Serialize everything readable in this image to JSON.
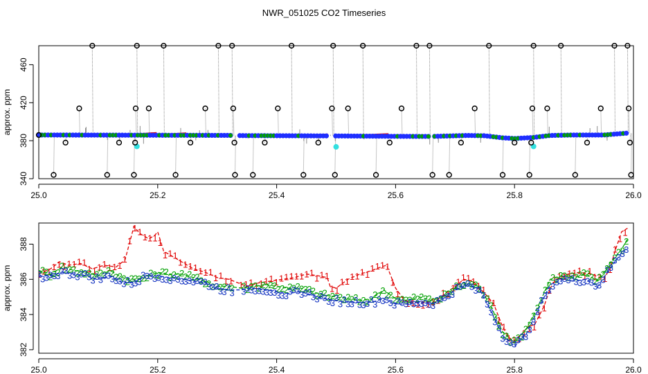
{
  "title": "NWR_051025  CO2 Timeseries",
  "colors": {
    "flag_black": "#000000",
    "blue_points": "#1f2fff",
    "cyan_points": "#33e0e0",
    "green_points": "#00a000",
    "red_series": "#e00000",
    "grey_lines": "#8c8c8c",
    "blue_series": "#1030c0"
  },
  "chart_data": [
    {
      "type": "scatter",
      "title": "NWR_051025  CO2 Timeseries",
      "ylabel": "approx. ppm",
      "xlabel": "",
      "xlim": [
        25.0,
        26.0
      ],
      "ylim": [
        340,
        480
      ],
      "xticks": [
        "25.0",
        "25.2",
        "25.4",
        "25.6",
        "25.8",
        "26.0"
      ],
      "yticks": [
        "340",
        "380",
        "420",
        "460"
      ],
      "grid": false,
      "baseline": [
        [
          25.0,
          386
        ],
        [
          25.32,
          385.6
        ],
        [
          25.33,
          385.4
        ],
        [
          25.5,
          385
        ],
        [
          25.6,
          384.6
        ],
        [
          25.66,
          384.5
        ],
        [
          25.68,
          384.8
        ],
        [
          25.72,
          385.5
        ],
        [
          25.75,
          385.2
        ],
        [
          25.78,
          383
        ],
        [
          25.8,
          382.3
        ],
        [
          25.83,
          383.3
        ],
        [
          25.86,
          385.5
        ],
        [
          25.9,
          386
        ],
        [
          25.95,
          386
        ],
        [
          25.99,
          388
        ]
      ],
      "gaps": [
        25.33,
        25.49,
        25.66
      ],
      "red_rise_segments": [
        [
          25.15,
          25.2,
          388
        ],
        [
          25.2,
          25.25,
          387.6
        ],
        [
          25.45,
          25.49,
          386.5
        ],
        [
          25.52,
          25.59,
          386.8
        ]
      ],
      "cyan_points": [
        [
          25.165,
          374
        ],
        [
          25.5,
          373.5
        ],
        [
          25.832,
          374
        ]
      ],
      "black_outliers": [
        [
          25.0,
          386
        ],
        [
          25.025,
          344
        ],
        [
          25.045,
          378
        ],
        [
          25.068,
          414
        ],
        [
          25.09,
          480
        ],
        [
          25.115,
          344
        ],
        [
          25.135,
          378
        ],
        [
          25.16,
          344
        ],
        [
          25.162,
          378
        ],
        [
          25.163,
          414
        ],
        [
          25.165,
          480
        ],
        [
          25.185,
          414
        ],
        [
          25.21,
          480
        ],
        [
          25.23,
          344
        ],
        [
          25.255,
          378
        ],
        [
          25.28,
          414
        ],
        [
          25.302,
          480
        ],
        [
          25.325,
          480
        ],
        [
          25.327,
          414
        ],
        [
          25.329,
          378
        ],
        [
          25.33,
          344
        ],
        [
          25.36,
          344
        ],
        [
          25.38,
          378
        ],
        [
          25.402,
          414
        ],
        [
          25.425,
          480
        ],
        [
          25.445,
          344
        ],
        [
          25.47,
          378
        ],
        [
          25.493,
          414
        ],
        [
          25.495,
          480
        ],
        [
          25.498,
          344
        ],
        [
          25.52,
          414
        ],
        [
          25.545,
          480
        ],
        [
          25.567,
          344
        ],
        [
          25.59,
          378
        ],
        [
          25.61,
          414
        ],
        [
          25.635,
          480
        ],
        [
          25.657,
          480
        ],
        [
          25.662,
          344
        ],
        [
          25.69,
          344
        ],
        [
          25.71,
          378
        ],
        [
          25.733,
          414
        ],
        [
          25.757,
          480
        ],
        [
          25.78,
          344
        ],
        [
          25.8,
          378
        ],
        [
          25.825,
          344
        ],
        [
          25.828,
          378
        ],
        [
          25.83,
          414
        ],
        [
          25.832,
          480
        ],
        [
          25.855,
          414
        ],
        [
          25.878,
          480
        ],
        [
          25.902,
          344
        ],
        [
          25.922,
          378
        ],
        [
          25.945,
          414
        ],
        [
          25.968,
          480
        ],
        [
          25.99,
          480
        ],
        [
          25.992,
          414
        ],
        [
          25.994,
          378
        ],
        [
          25.996,
          344
        ]
      ]
    },
    {
      "type": "line",
      "title": "",
      "ylabel": "approx. ppm",
      "xlabel": "",
      "xlim": [
        25.0,
        26.0
      ],
      "ylim": [
        381.8,
        389.2
      ],
      "xticks": [
        "25.0",
        "25.2",
        "25.4",
        "25.6",
        "25.8",
        "26.0"
      ],
      "yticks": [
        "382",
        "384",
        "386",
        "388"
      ],
      "grid": false,
      "series": [
        {
          "label": "1",
          "color": "#e00000",
          "points": [
            [
              25.0,
              386.3
            ],
            [
              25.02,
              386.6
            ],
            [
              25.035,
              387
            ],
            [
              25.05,
              386.8
            ],
            [
              25.07,
              386.9
            ],
            [
              25.09,
              386.6
            ],
            [
              25.11,
              386.8
            ],
            [
              25.13,
              386.7
            ],
            [
              25.145,
              387.1
            ],
            [
              25.16,
              389.0
            ],
            [
              25.17,
              388.6
            ],
            [
              25.185,
              388.3
            ],
            [
              25.195,
              388.5
            ],
            [
              25.2,
              388.7
            ],
            [
              25.21,
              387.6
            ],
            [
              25.225,
              387.3
            ],
            [
              25.24,
              387
            ],
            [
              25.26,
              386.6
            ],
            [
              25.28,
              386.4
            ],
            [
              25.3,
              386.1
            ],
            [
              25.32,
              386
            ],
            [
              25.335,
              385.8
            ],
            [
              25.35,
              385.6
            ],
            [
              25.37,
              385.8
            ],
            [
              25.39,
              385.9
            ],
            [
              25.41,
              386
            ],
            [
              25.43,
              386.1
            ],
            [
              25.45,
              386.3
            ],
            [
              25.47,
              386.2
            ],
            [
              25.485,
              386.1
            ],
            [
              25.49,
              385.6
            ],
            [
              25.5,
              385.5
            ],
            [
              25.52,
              386
            ],
            [
              25.54,
              386.3
            ],
            [
              25.56,
              386.5
            ],
            [
              25.575,
              386.7
            ],
            [
              25.585,
              386.8
            ],
            [
              25.6,
              385.5
            ],
            [
              25.615,
              384.8
            ],
            [
              25.63,
              384.7
            ],
            [
              25.65,
              384.7
            ],
            [
              25.665,
              384.7
            ],
            [
              25.68,
              385.1
            ],
            [
              25.7,
              385.6
            ],
            [
              25.715,
              386
            ],
            [
              25.73,
              385.9
            ],
            [
              25.75,
              385.2
            ],
            [
              25.765,
              384.6
            ],
            [
              25.78,
              383.3
            ],
            [
              25.79,
              382.7
            ],
            [
              25.8,
              382.5
            ],
            [
              25.81,
              382.8
            ],
            [
              25.82,
              383.2
            ],
            [
              25.835,
              383.5
            ],
            [
              25.85,
              384.5
            ],
            [
              25.86,
              385.5
            ],
            [
              25.87,
              386
            ],
            [
              25.89,
              386.3
            ],
            [
              25.91,
              386.4
            ],
            [
              25.93,
              386.3
            ],
            [
              25.95,
              386
            ],
            [
              25.96,
              386.6
            ],
            [
              25.97,
              387.7
            ],
            [
              25.98,
              388.7
            ],
            [
              25.99,
              388.9
            ]
          ]
        },
        {
          "label": "2",
          "color": "#00a000",
          "points": [
            [
              25.0,
              386.5
            ],
            [
              25.02,
              386.3
            ],
            [
              25.04,
              386.7
            ],
            [
              25.06,
              386.5
            ],
            [
              25.08,
              386.4
            ],
            [
              25.1,
              386.2
            ],
            [
              25.12,
              386.5
            ],
            [
              25.14,
              386.1
            ],
            [
              25.16,
              386
            ],
            [
              25.18,
              386.1
            ],
            [
              25.2,
              386.4
            ],
            [
              25.22,
              386.3
            ],
            [
              25.24,
              386.3
            ],
            [
              25.26,
              386.1
            ],
            [
              25.28,
              385.9
            ],
            [
              25.3,
              385.6
            ],
            [
              25.32,
              385.6
            ],
            [
              25.34,
              385.5
            ],
            [
              25.36,
              385.6
            ],
            [
              25.38,
              385.7
            ],
            [
              25.4,
              385.6
            ],
            [
              25.42,
              385.5
            ],
            [
              25.44,
              385.5
            ],
            [
              25.46,
              385.3
            ],
            [
              25.48,
              385.1
            ],
            [
              25.5,
              385
            ],
            [
              25.52,
              384.9
            ],
            [
              25.54,
              384.8
            ],
            [
              25.56,
              384.9
            ],
            [
              25.58,
              385.4
            ],
            [
              25.6,
              384.9
            ],
            [
              25.62,
              384.8
            ],
            [
              25.64,
              385
            ],
            [
              25.66,
              384.8
            ],
            [
              25.68,
              385
            ],
            [
              25.7,
              385.5
            ],
            [
              25.72,
              385.8
            ],
            [
              25.74,
              385.6
            ],
            [
              25.76,
              384.5
            ],
            [
              25.78,
              383
            ],
            [
              25.8,
              382.4
            ],
            [
              25.82,
              383.2
            ],
            [
              25.84,
              384.5
            ],
            [
              25.86,
              386
            ],
            [
              25.88,
              386.2
            ],
            [
              25.9,
              386.1
            ],
            [
              25.92,
              386.3
            ],
            [
              25.94,
              385.9
            ],
            [
              25.96,
              386.9
            ],
            [
              25.98,
              387.7
            ],
            [
              25.99,
              388.3
            ]
          ]
        },
        {
          "label": "3",
          "color": "#1030c0",
          "points": [
            [
              25.0,
              386.2
            ],
            [
              25.02,
              386.2
            ],
            [
              25.04,
              386.4
            ],
            [
              25.06,
              386.3
            ],
            [
              25.08,
              386.2
            ],
            [
              25.1,
              386
            ],
            [
              25.12,
              386.2
            ],
            [
              25.14,
              385.8
            ],
            [
              25.16,
              385.8
            ],
            [
              25.18,
              386.2
            ],
            [
              25.2,
              386.2
            ],
            [
              25.22,
              386.1
            ],
            [
              25.24,
              386
            ],
            [
              25.26,
              385.9
            ],
            [
              25.28,
              385.8
            ],
            [
              25.3,
              385.5
            ],
            [
              25.32,
              385.4
            ],
            [
              25.34,
              385.4
            ],
            [
              25.36,
              385.5
            ],
            [
              25.38,
              385.4
            ],
            [
              25.4,
              385.3
            ],
            [
              25.42,
              385.2
            ],
            [
              25.44,
              385.3
            ],
            [
              25.46,
              385.1
            ],
            [
              25.48,
              384.9
            ],
            [
              25.5,
              384.8
            ],
            [
              25.52,
              384.7
            ],
            [
              25.54,
              384.7
            ],
            [
              25.56,
              384.7
            ],
            [
              25.58,
              384.9
            ],
            [
              25.6,
              384.6
            ],
            [
              25.62,
              384.6
            ],
            [
              25.64,
              384.7
            ],
            [
              25.66,
              384.6
            ],
            [
              25.68,
              384.9
            ],
            [
              25.7,
              385.4
            ],
            [
              25.72,
              385.7
            ],
            [
              25.74,
              385.5
            ],
            [
              25.76,
              384.2
            ],
            [
              25.78,
              382.8
            ],
            [
              25.8,
              382.2
            ],
            [
              25.82,
              382.9
            ],
            [
              25.84,
              384.3
            ],
            [
              25.86,
              385.7
            ],
            [
              25.88,
              386
            ],
            [
              25.9,
              385.9
            ],
            [
              25.92,
              386
            ],
            [
              25.94,
              385.6
            ],
            [
              25.96,
              386.6
            ],
            [
              25.98,
              387.5
            ],
            [
              25.99,
              387.8
            ]
          ]
        }
      ]
    }
  ]
}
